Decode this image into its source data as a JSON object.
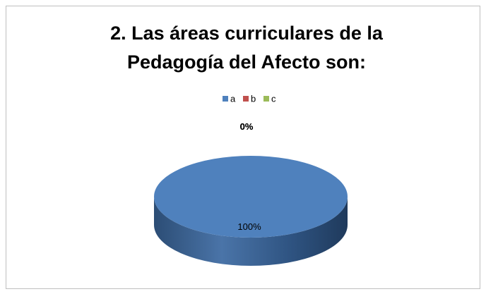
{
  "chart_data": {
    "type": "pie",
    "title": [
      "2. Las áreas curriculares de la",
      "Pedagogía del Afecto  son:"
    ],
    "categories": [
      "a",
      "b",
      "c"
    ],
    "values": [
      100,
      0,
      0
    ],
    "value_labels": [
      "100%",
      "0%",
      "0%"
    ],
    "colors": [
      "#4f81bd",
      "#c0504d",
      "#9bbb59"
    ],
    "legend": "top"
  }
}
